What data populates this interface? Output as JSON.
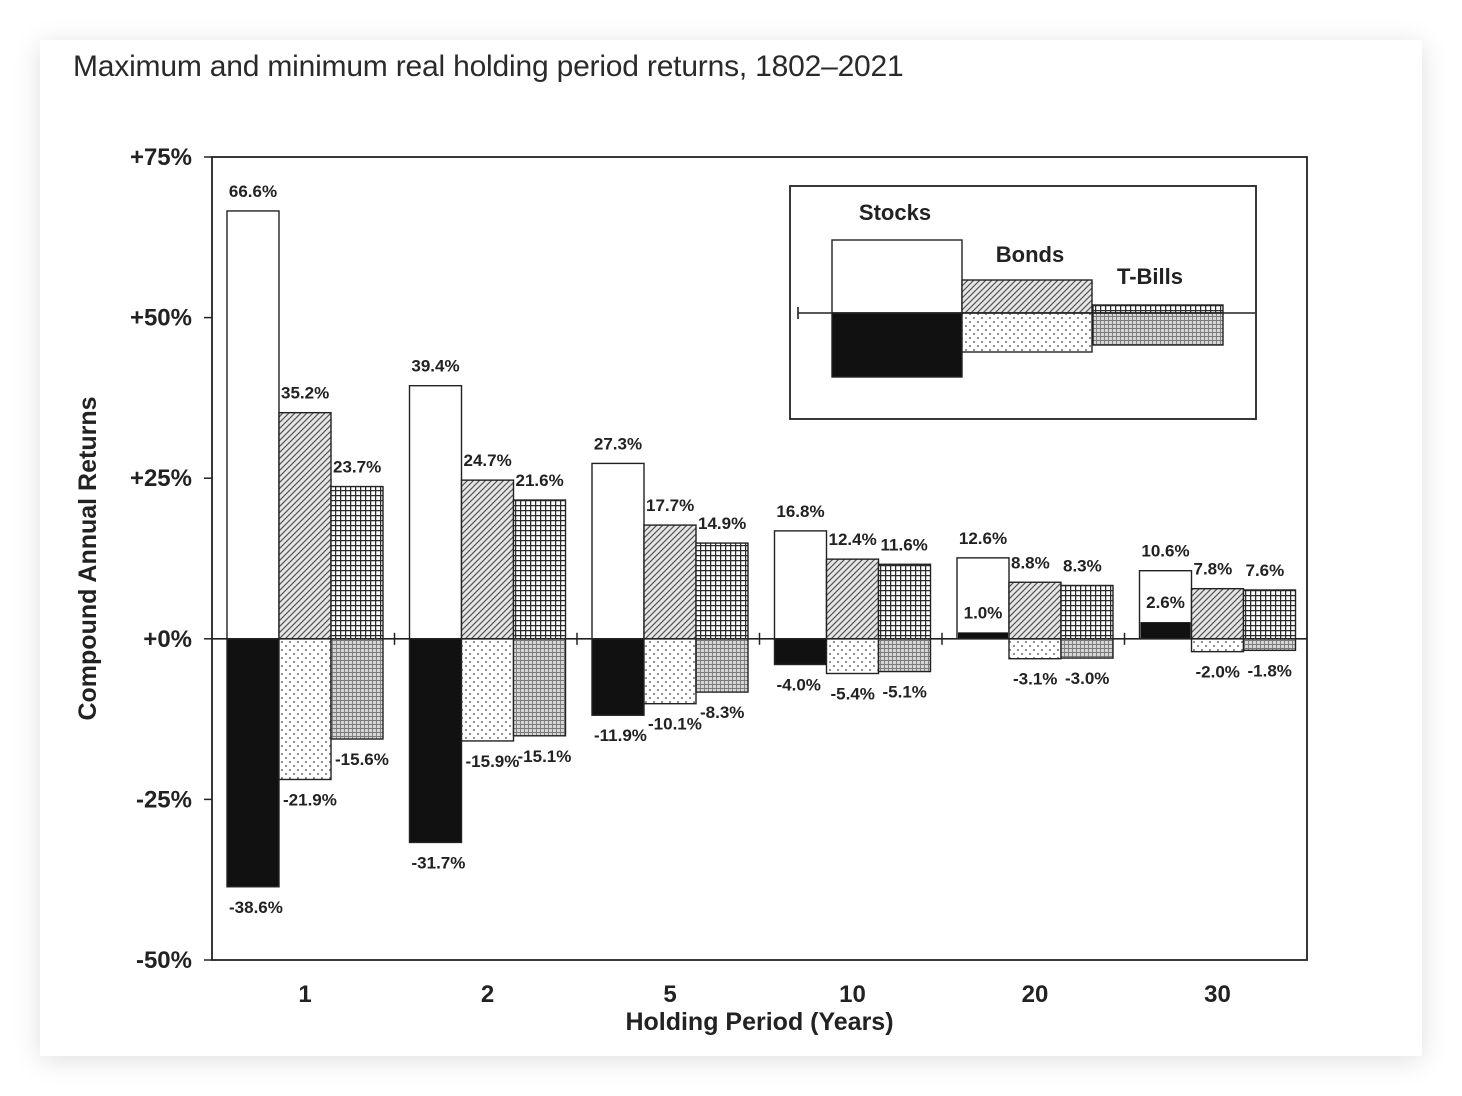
{
  "title": "Maximum and minimum real holding period returns, 1802–2021",
  "chart_data": {
    "type": "bar",
    "title": "Maximum and minimum real holding period returns, 1802–2021",
    "xlabel": "Holding Period (Years)",
    "ylabel": "Compound Annual Returns",
    "ylim": [
      -50,
      75
    ],
    "y_ticks": [
      75,
      50,
      25,
      0,
      -25,
      -50
    ],
    "y_tick_labels": [
      "+75%",
      "+50%",
      "+25%",
      "+0%",
      "-25%",
      "-50%"
    ],
    "categories": [
      "1",
      "2",
      "5",
      "10",
      "20",
      "30"
    ],
    "legend_position": "top-right",
    "series": [
      {
        "name": "Stocks",
        "max": [
          66.6,
          39.4,
          27.3,
          16.8,
          12.6,
          10.6
        ],
        "min": [
          -38.6,
          -31.7,
          -11.9,
          -4.0,
          1.0,
          2.6
        ],
        "max_labels": [
          "66.6%",
          "39.4%",
          "27.3%",
          "16.8%",
          "12.6%",
          "10.6%"
        ],
        "min_labels": [
          "-38.6%",
          "-31.7%",
          "-11.9%",
          "-4.0%",
          "1.0%",
          "2.6%"
        ]
      },
      {
        "name": "Bonds",
        "max": [
          35.2,
          24.7,
          17.7,
          12.4,
          8.8,
          7.8
        ],
        "min": [
          -21.9,
          -15.9,
          -10.1,
          -5.4,
          -3.1,
          -2.0
        ],
        "max_labels": [
          "35.2%",
          "24.7%",
          "17.7%",
          "12.4%",
          "8.8%",
          "7.8%"
        ],
        "min_labels": [
          "-21.9%",
          "-15.9%",
          "-10.1%",
          "-5.4%",
          "-3.1%",
          "-2.0%"
        ]
      },
      {
        "name": "T-Bills",
        "max": [
          23.7,
          21.6,
          14.9,
          11.6,
          8.3,
          7.6
        ],
        "min": [
          -15.6,
          -15.1,
          -8.3,
          -5.1,
          -3.0,
          -1.8
        ],
        "max_labels": [
          "23.7%",
          "21.6%",
          "14.9%",
          "11.6%",
          "8.3%",
          "7.6%"
        ],
        "min_labels": [
          "-15.6%",
          "-15.1%",
          "-8.3%",
          "-5.1%",
          "-3.0%",
          "-1.8%"
        ]
      }
    ],
    "colors": {
      "stocks_max": "#ffffff",
      "stocks_min": "#111111",
      "outline": "#222222"
    }
  }
}
